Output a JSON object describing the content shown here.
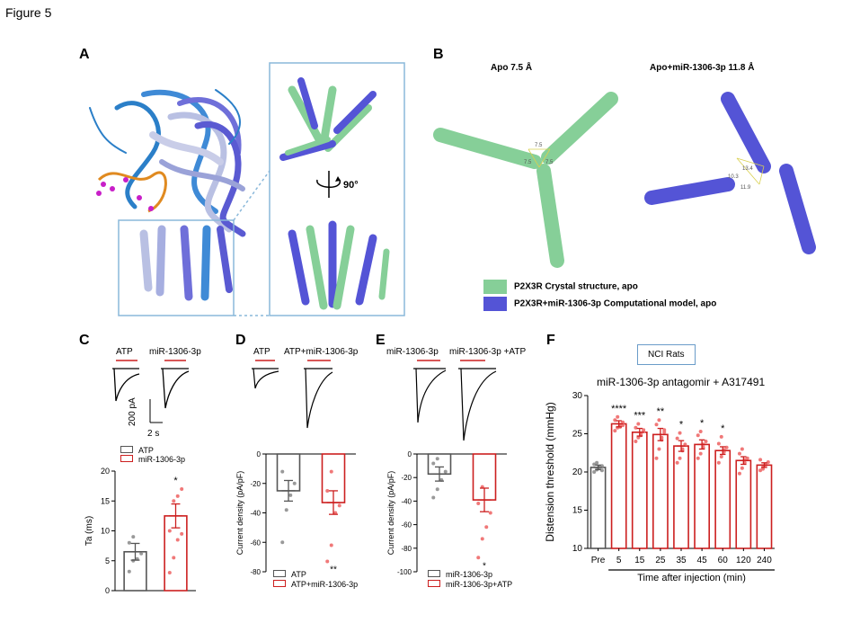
{
  "figure_title": "Figure 5",
  "panels": {
    "A": {
      "label": "A",
      "rotation_label": "90°"
    },
    "B": {
      "label": "B",
      "title_apo": "Apo 7.5 Å",
      "title_mir": "Apo+miR-1306-3p 11.8 Å",
      "dist_apo": [
        "7.5",
        "7.5",
        "7.5"
      ],
      "dist_mir": [
        "13.4",
        "10.3",
        "11.9"
      ],
      "legend": [
        {
          "label": "P2X3R Crystal structure, apo",
          "color": "#86cf98"
        },
        {
          "label": "P2X3R+miR-1306-3p Computational model, apo",
          "color": "#5454d6"
        }
      ]
    },
    "C": {
      "label": "C",
      "trace_labels": [
        "ATP",
        "miR-1306-3p"
      ],
      "scale_y": "200 pA",
      "scale_x": "2 s",
      "legend": [
        "ATP",
        "miR-1306-3p"
      ]
    },
    "D": {
      "label": "D",
      "trace_labels": [
        "ATP",
        "ATP+miR-1306-3p"
      ],
      "legend": [
        "ATP",
        "ATP+miR-1306-3p"
      ]
    },
    "E": {
      "label": "E",
      "trace_labels": [
        "miR-1306-3p",
        "miR-1306-3p +ATP"
      ],
      "legend": [
        "miR-1306-3p",
        "miR-1306-3p+ATP"
      ]
    },
    "F": {
      "label": "F",
      "group_label": "NCI Rats",
      "treatment_label": "miR-1306-3p antagomir + A317491"
    }
  },
  "colors": {
    "control": "#555555",
    "treated": "#cc1f1f",
    "dots": "#f07878",
    "green": "#86cf98",
    "blue": "#5454d6",
    "frame": "#8ab8da"
  },
  "chart_data": [
    {
      "id": "C",
      "type": "bar",
      "categories": [
        "ATP",
        "miR-1306-3p"
      ],
      "values": [
        6.5,
        12.5
      ],
      "sem": [
        1.4,
        2.0
      ],
      "points": [
        [
          3.2,
          5.0,
          5.3,
          6.2,
          8.0,
          9.0
        ],
        [
          3.0,
          5.5,
          8.5,
          9.5,
          10.0,
          15.0,
          15.8,
          17.0
        ]
      ],
      "ylabel": "Ta (ms)",
      "ylim": [
        0,
        20
      ],
      "yticks": [
        0,
        5,
        10,
        15,
        20
      ],
      "annotations": [
        "",
        "*"
      ]
    },
    {
      "id": "D",
      "type": "bar",
      "categories": [
        "ATP",
        "ATP+miR-1306-3p"
      ],
      "values": [
        -25,
        -33
      ],
      "sem": [
        7,
        8
      ],
      "points": [
        [
          -60,
          -38,
          -28,
          -20,
          -12
        ],
        [
          -73,
          -62,
          -40,
          -35,
          -25,
          -12
        ]
      ],
      "ylabel": "Current density (pA/pF)",
      "ylim": [
        -80,
        0
      ],
      "yticks": [
        -80,
        -60,
        -40,
        -20,
        0
      ],
      "annotations": [
        "",
        "**"
      ]
    },
    {
      "id": "E",
      "type": "bar",
      "categories": [
        "miR-1306-3p",
        "miR-1306-3p+ATP"
      ],
      "values": [
        -17,
        -39
      ],
      "sem": [
        6,
        10
      ],
      "points": [
        [
          -37,
          -30,
          -22,
          -15,
          -8,
          -4
        ],
        [
          -88,
          -72,
          -62,
          -50,
          -42,
          -28
        ]
      ],
      "ylabel": "Current density (pA/pF)",
      "ylim": [
        -100,
        0
      ],
      "yticks": [
        -100,
        -80,
        -60,
        -40,
        -20,
        0
      ],
      "annotations": [
        "",
        "*"
      ]
    },
    {
      "id": "F",
      "type": "bar",
      "title": "miR-1306-3p antagomir + A317491",
      "categories": [
        "Pre",
        "5",
        "15",
        "25",
        "35",
        "45",
        "60",
        "120",
        "240"
      ],
      "values": [
        20.6,
        26.3,
        25.2,
        24.9,
        23.4,
        23.6,
        22.8,
        21.5,
        20.9
      ],
      "sem": [
        0.3,
        0.4,
        0.5,
        0.8,
        0.7,
        0.6,
        0.5,
        0.5,
        0.3
      ],
      "points": [
        [
          20.0,
          20.3,
          20.5,
          20.8,
          21.0,
          21.2,
          20.6,
          20.2
        ],
        [
          25.4,
          25.8,
          26.2,
          26.5,
          26.8,
          27.2,
          25.9,
          26.1
        ],
        [
          24.0,
          24.5,
          25.0,
          25.3,
          25.8,
          26.3,
          24.8,
          25.5
        ],
        [
          21.8,
          23.0,
          24.5,
          25.5,
          26.2,
          26.8,
          24.2,
          25.2
        ],
        [
          21.2,
          21.8,
          22.8,
          23.6,
          24.4,
          25.1,
          23.0
        ],
        [
          21.8,
          22.4,
          23.2,
          24.0,
          24.8,
          25.3,
          23.6
        ],
        [
          21.2,
          22.0,
          22.6,
          23.2,
          23.7,
          24.6,
          22.9
        ],
        [
          19.8,
          20.5,
          21.2,
          21.8,
          22.4,
          23.0,
          21.6
        ],
        [
          20.2,
          20.6,
          20.9,
          21.3,
          21.6,
          20.4,
          21.0
        ]
      ],
      "ylabel": "Distension threshold (mmHg)",
      "xlabel": "Time after injection (min)",
      "ylim": [
        10,
        30
      ],
      "yticks": [
        10,
        15,
        20,
        25,
        30
      ],
      "annotations": [
        "",
        "****",
        "***",
        "**",
        "*",
        "*",
        "*",
        "",
        ""
      ]
    }
  ]
}
